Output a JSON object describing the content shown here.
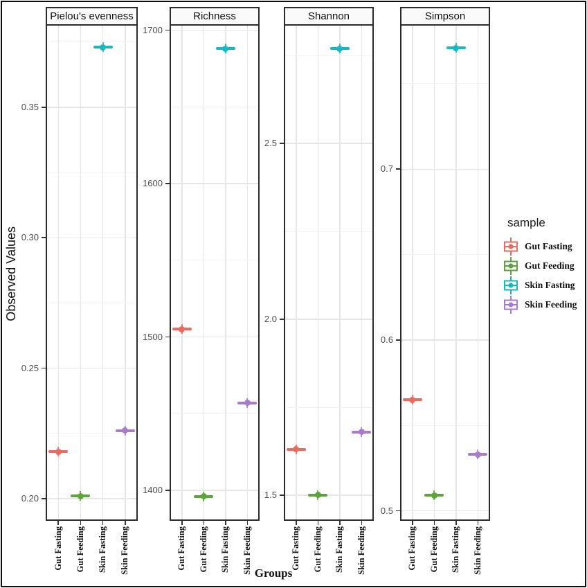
{
  "figure": {
    "y_axis_title": "Observed Values",
    "x_axis_title": "Groups"
  },
  "legend": {
    "title": "sample",
    "entries": [
      {
        "label": "Gut Fasting",
        "color": "#ee6a5f"
      },
      {
        "label": "Gut Feeding",
        "color": "#5ba53c"
      },
      {
        "label": "Skin Fasting",
        "color": "#17b8bf"
      },
      {
        "label": "Skin Feeding",
        "color": "#a87ccb"
      }
    ]
  },
  "chart_data": {
    "type": "boxplot",
    "note": "ggplot-style faceted alpha-diversity boxplots; boxes are collapsed to flat bars with a center point",
    "categories": [
      "Gut Fasting",
      "Gut Feeding",
      "Skin Fasting",
      "Skin Feeding"
    ],
    "category_colors": [
      "#ee6a5f",
      "#5ba53c",
      "#17b8bf",
      "#a87ccb"
    ],
    "xlabel": "Groups",
    "ylabel": "Observed Values",
    "legend_title": "sample",
    "legend_position": "right",
    "grid": true,
    "panels": [
      {
        "title": "Pielou's evenness",
        "ylim": [
          0.192,
          0.3813
        ],
        "yticks": [
          0.2,
          0.25,
          0.3,
          0.35
        ],
        "ytick_labels": [
          "0.20",
          "0.25",
          "0.30",
          "0.35"
        ],
        "yticks_minor": [
          0.225,
          0.275,
          0.325,
          0.375
        ],
        "values": [
          0.218,
          0.201,
          0.373,
          0.226
        ]
      },
      {
        "title": "Richness",
        "ylim": [
          1381,
          1703
        ],
        "yticks": [
          1400,
          1500,
          1600,
          1700
        ],
        "ytick_labels": [
          "1400",
          "1500",
          "1600",
          "1700"
        ],
        "yticks_minor": [
          1450,
          1550,
          1650
        ],
        "values": [
          1505,
          1396,
          1688,
          1457
        ]
      },
      {
        "title": "Shannon",
        "ylim": [
          1.431,
          2.835
        ],
        "yticks": [
          1.5,
          2.0,
          2.5
        ],
        "ytick_labels": [
          "1.5",
          "2.0",
          "2.5"
        ],
        "yticks_minor": [
          1.75,
          2.25,
          2.75
        ],
        "values": [
          1.63,
          1.5,
          2.77,
          1.68
        ]
      },
      {
        "title": "Simpson",
        "ylim": [
          0.495,
          0.784
        ],
        "yticks": [
          0.5,
          0.6,
          0.7
        ],
        "ytick_labels": [
          "0.5",
          "0.6",
          "0.7"
        ],
        "yticks_minor": [
          0.55,
          0.65,
          0.75
        ],
        "values": [
          0.565,
          0.509,
          0.771,
          0.533
        ]
      }
    ]
  }
}
